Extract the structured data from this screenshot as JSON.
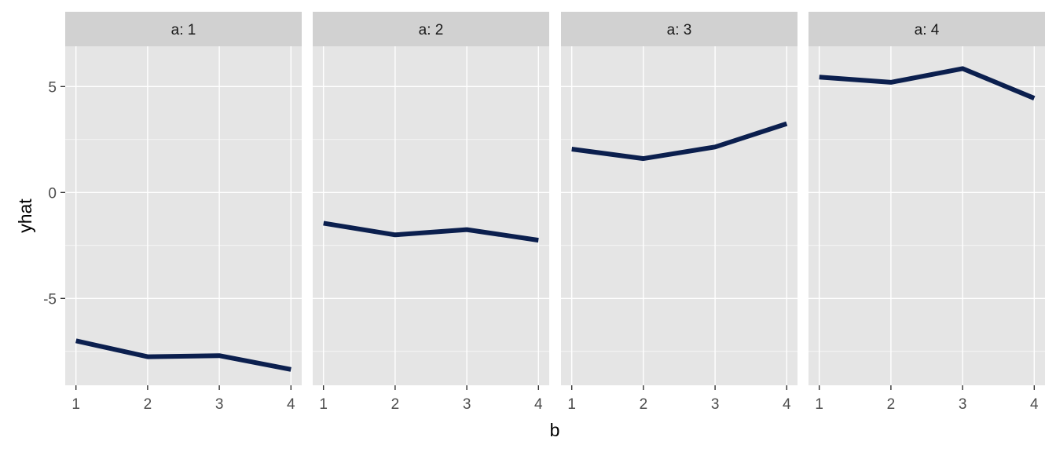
{
  "chart_data": {
    "type": "line",
    "xlabel": "b",
    "ylabel": "yhat",
    "x": [
      1,
      2,
      3,
      4
    ],
    "x_ticks": [
      "1",
      "2",
      "3",
      "4"
    ],
    "y_ticks": [
      5,
      0,
      -5
    ],
    "y_tick_labels": [
      "5",
      "0",
      "-5"
    ],
    "ylim": [
      -9.1,
      6.9
    ],
    "xlim": [
      0.85,
      4.15
    ],
    "panels": [
      {
        "label": "a: 1",
        "values": [
          -7.0,
          -7.75,
          -7.7,
          -8.35
        ]
      },
      {
        "label": "a: 2",
        "values": [
          -1.45,
          -2.0,
          -1.75,
          -2.25
        ]
      },
      {
        "label": "a: 3",
        "values": [
          2.05,
          1.6,
          2.15,
          3.25
        ]
      },
      {
        "label": "a: 4",
        "values": [
          5.45,
          5.2,
          5.85,
          4.45
        ]
      }
    ],
    "colors": {
      "line": "#0b1f4e",
      "panel_bg": "#e5e5e5",
      "strip_bg": "#d1d1d1",
      "grid": "#ffffff",
      "tick": "#333333"
    }
  }
}
